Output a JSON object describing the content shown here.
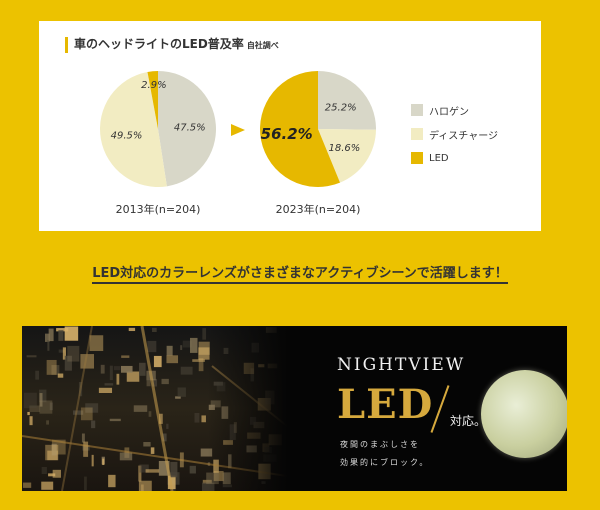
{
  "card": {
    "title": "車のヘッドライトのLED普及率",
    "subtitle": "自社調べ"
  },
  "colors": {
    "halogen": "#d8d7c8",
    "discharge": "#f2ecc2",
    "led": "#e6b800",
    "page_bg": "#ecc200",
    "arrow": "#e6b800"
  },
  "chart_data": [
    {
      "type": "pie",
      "caption": "2013年(n=204)",
      "categories": [
        "ハロゲン",
        "ディスチャージ",
        "LED"
      ],
      "values": [
        47.5,
        49.5,
        2.9
      ],
      "labels": [
        "47.5%",
        "49.5%",
        "2.9%"
      ]
    },
    {
      "type": "pie",
      "caption": "2023年(n=204)",
      "categories": [
        "ハロゲン",
        "ディスチャージ",
        "LED"
      ],
      "values": [
        25.2,
        18.6,
        56.2
      ],
      "labels": [
        "25.2%",
        "18.6%",
        "56.2%"
      ]
    }
  ],
  "legend": [
    {
      "label": "ハロゲン",
      "color": "#d8d7c8"
    },
    {
      "label": "ディスチャージ",
      "color": "#f2ecc2"
    },
    {
      "label": "LED",
      "color": "#e6b800"
    }
  ],
  "cta_text": "LED対応のカラーレンズがさまざまなアクティブシーンで活躍します！",
  "banner": {
    "logo": "NIGHTVIEW",
    "headline": "LED",
    "taio": "対応。",
    "desc_line1": "夜間のまぶしさを",
    "desc_line2": "効果的にブロック。"
  }
}
